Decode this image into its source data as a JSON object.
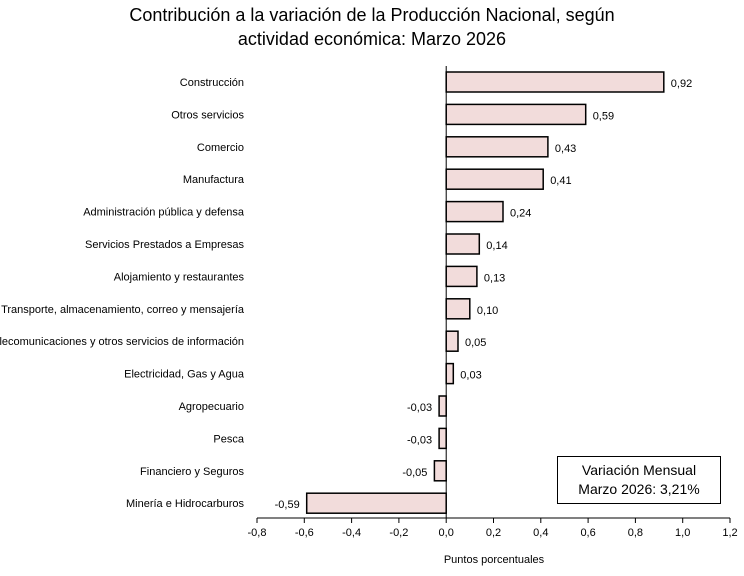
{
  "chart_data": {
    "type": "bar",
    "orientation": "horizontal",
    "title_line1": "Contribución a la variación de la Producción Nacional, según",
    "title_line2": "actividad económica: Marzo 2026",
    "xlabel": "Puntos porcentuales",
    "xlim": [
      -0.8,
      1.2
    ],
    "xticks": [
      -0.8,
      -0.6,
      -0.4,
      -0.2,
      0.0,
      0.2,
      0.4,
      0.6,
      0.8,
      1.0,
      1.2
    ],
    "xtick_labels": [
      "-0,8",
      "-0,6",
      "-0,4",
      "-0,2",
      "0,0",
      "0,2",
      "0,4",
      "0,6",
      "0,8",
      "1,0",
      "1,2"
    ],
    "categories": [
      "Construcción",
      "Otros servicios",
      "Comercio",
      "Manufactura",
      "Administración pública y defensa",
      "Servicios Prestados a Empresas",
      "Alojamiento y restaurantes",
      "Transporte, almacenamiento, correo y mensajería",
      "Telecomunicaciones y otros servicios de información",
      "Electricidad, Gas y Agua",
      "Agropecuario",
      "Pesca",
      "Financiero y Seguros",
      "Minería e Hidrocarburos"
    ],
    "values": [
      0.92,
      0.59,
      0.43,
      0.41,
      0.24,
      0.14,
      0.13,
      0.1,
      0.05,
      0.03,
      -0.03,
      -0.03,
      -0.05,
      -0.59
    ],
    "value_labels": [
      "0,92",
      "0,59",
      "0,43",
      "0,41",
      "0,24",
      "0,14",
      "0,13",
      "0,10",
      "0,05",
      "0,03",
      "-0,03",
      "-0,03",
      "-0,05",
      "-0,59"
    ],
    "bar_color": "#f2dcdb",
    "bar_edge_color": "#000000",
    "legend": "none",
    "grid": false
  },
  "annotation": {
    "line1": "Variación Mensual",
    "line2": "Marzo 2026: 3,21%"
  }
}
